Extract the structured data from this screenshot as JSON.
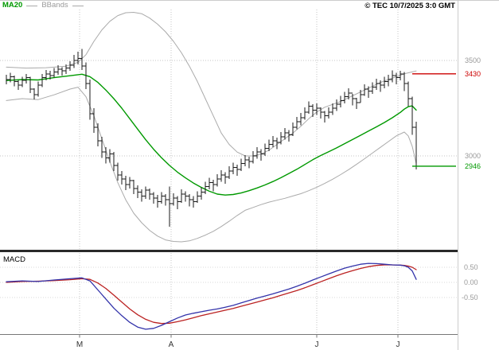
{
  "header": {
    "copyright": "© TEC 10/7/2025 3:0 GMT"
  },
  "legend": {
    "ma20": "MA20",
    "bbands": "BBands"
  },
  "macd_panel": {
    "title": "MACD"
  },
  "chart_data": {
    "type": "candlestick",
    "title": "Price chart with MA20 and Bollinger Bands, MACD sub-panel",
    "price_axis": {
      "tick_labels": [
        "3500",
        "3000"
      ],
      "gridlines": [
        3500,
        3000
      ],
      "range_visible": [
        2550,
        3780
      ]
    },
    "x_axis": {
      "month_labels": [
        "M",
        "A",
        "J",
        "J"
      ],
      "month_positions": [
        18.4,
        41.4,
        78,
        98.4
      ],
      "bar_count": 104
    },
    "markers": {
      "last_red": {
        "label": "3430",
        "value": 3430,
        "color": "#cc0000"
      },
      "last_green": {
        "label": "2946",
        "value": 2946,
        "color": "#009900"
      }
    },
    "colors": {
      "bars": "#1a1a1a",
      "ma20": "#009900",
      "bbands": "#aaaaaa",
      "macd_line": "#3333aa",
      "macd_signal": "#bb2222",
      "grid": "#c6c6c6"
    },
    "bars_format": [
      "high",
      "low",
      "close"
    ],
    "bars": [
      [
        3425,
        3375,
        3400
      ],
      [
        3435,
        3385,
        3415
      ],
      [
        3420,
        3365,
        3390
      ],
      [
        3395,
        3345,
        3370
      ],
      [
        3415,
        3360,
        3395
      ],
      [
        3430,
        3380,
        3410
      ],
      [
        3415,
        3330,
        3350
      ],
      [
        3355,
        3295,
        3320
      ],
      [
        3390,
        3310,
        3370
      ],
      [
        3430,
        3360,
        3410
      ],
      [
        3450,
        3395,
        3430
      ],
      [
        3445,
        3400,
        3420
      ],
      [
        3460,
        3410,
        3440
      ],
      [
        3475,
        3425,
        3455
      ],
      [
        3465,
        3420,
        3445
      ],
      [
        3480,
        3430,
        3460
      ],
      [
        3495,
        3445,
        3475
      ],
      [
        3530,
        3460,
        3500
      ],
      [
        3545,
        3480,
        3510
      ],
      [
        3560,
        3450,
        3470
      ],
      [
        3490,
        3350,
        3380
      ],
      [
        3400,
        3190,
        3220
      ],
      [
        3250,
        3120,
        3150
      ],
      [
        3170,
        3050,
        3080
      ],
      [
        3100,
        2990,
        3020
      ],
      [
        3045,
        2960,
        2990
      ],
      [
        3035,
        2965,
        3010
      ],
      [
        3020,
        2920,
        2950
      ],
      [
        2965,
        2870,
        2900
      ],
      [
        2920,
        2850,
        2880
      ],
      [
        2895,
        2820,
        2850
      ],
      [
        2890,
        2830,
        2870
      ],
      [
        2875,
        2800,
        2830
      ],
      [
        2845,
        2780,
        2810
      ],
      [
        2825,
        2760,
        2790
      ],
      [
        2840,
        2775,
        2820
      ],
      [
        2830,
        2770,
        2800
      ],
      [
        2810,
        2750,
        2780
      ],
      [
        2795,
        2730,
        2760
      ],
      [
        2810,
        2750,
        2790
      ],
      [
        2800,
        2740,
        2770
      ],
      [
        2840,
        2630,
        2750
      ],
      [
        2805,
        2740,
        2780
      ],
      [
        2790,
        2720,
        2760
      ],
      [
        2825,
        2755,
        2800
      ],
      [
        2815,
        2760,
        2790
      ],
      [
        2800,
        2735,
        2770
      ],
      [
        2790,
        2730,
        2760
      ],
      [
        2815,
        2755,
        2790
      ],
      [
        2835,
        2770,
        2810
      ],
      [
        2865,
        2800,
        2840
      ],
      [
        2885,
        2825,
        2860
      ],
      [
        2875,
        2815,
        2850
      ],
      [
        2905,
        2840,
        2880
      ],
      [
        2925,
        2865,
        2900
      ],
      [
        2915,
        2855,
        2890
      ],
      [
        2945,
        2880,
        2920
      ],
      [
        2965,
        2905,
        2940
      ],
      [
        2955,
        2895,
        2930
      ],
      [
        2985,
        2920,
        2960
      ],
      [
        3005,
        2945,
        2980
      ],
      [
        2995,
        2935,
        2970
      ],
      [
        3025,
        2960,
        3000
      ],
      [
        3045,
        2985,
        3020
      ],
      [
        3035,
        2975,
        3010
      ],
      [
        3065,
        3000,
        3040
      ],
      [
        3085,
        3025,
        3060
      ],
      [
        3105,
        3045,
        3080
      ],
      [
        3095,
        3035,
        3070
      ],
      [
        3125,
        3060,
        3100
      ],
      [
        3145,
        3085,
        3120
      ],
      [
        3135,
        3075,
        3110
      ],
      [
        3175,
        3105,
        3150
      ],
      [
        3205,
        3140,
        3180
      ],
      [
        3225,
        3160,
        3200
      ],
      [
        3255,
        3190,
        3230
      ],
      [
        3285,
        3220,
        3260
      ],
      [
        3270,
        3205,
        3240
      ],
      [
        3275,
        3215,
        3250
      ],
      [
        3255,
        3195,
        3230
      ],
      [
        3235,
        3175,
        3210
      ],
      [
        3255,
        3195,
        3230
      ],
      [
        3275,
        3215,
        3250
      ],
      [
        3295,
        3235,
        3270
      ],
      [
        3315,
        3255,
        3290
      ],
      [
        3335,
        3275,
        3310
      ],
      [
        3355,
        3295,
        3330
      ],
      [
        3325,
        3265,
        3300
      ],
      [
        3305,
        3245,
        3280
      ],
      [
        3345,
        3280,
        3320
      ],
      [
        3375,
        3315,
        3350
      ],
      [
        3365,
        3305,
        3340
      ],
      [
        3385,
        3325,
        3360
      ],
      [
        3405,
        3345,
        3380
      ],
      [
        3395,
        3335,
        3370
      ],
      [
        3415,
        3355,
        3390
      ],
      [
        3425,
        3365,
        3400
      ],
      [
        3448,
        3385,
        3420
      ],
      [
        3435,
        3375,
        3410
      ],
      [
        3445,
        3395,
        3430
      ],
      [
        3440,
        3340,
        3380
      ],
      [
        3390,
        3260,
        3300
      ],
      [
        3310,
        3110,
        3150
      ],
      [
        3180,
        2930,
        2946
      ]
    ],
    "ma20": [
      [
        0,
        3395
      ],
      [
        4,
        3400
      ],
      [
        8,
        3398
      ],
      [
        12,
        3410
      ],
      [
        16,
        3420
      ],
      [
        19,
        3428
      ],
      [
        21,
        3415
      ],
      [
        23,
        3385
      ],
      [
        25,
        3345
      ],
      [
        27,
        3300
      ],
      [
        29,
        3250
      ],
      [
        31,
        3195
      ],
      [
        33,
        3140
      ],
      [
        35,
        3085
      ],
      [
        37,
        3035
      ],
      [
        39,
        2990
      ],
      [
        41,
        2950
      ],
      [
        43,
        2915
      ],
      [
        45,
        2885
      ],
      [
        47,
        2858
      ],
      [
        49,
        2835
      ],
      [
        51,
        2815
      ],
      [
        53,
        2800
      ],
      [
        55,
        2795
      ],
      [
        57,
        2798
      ],
      [
        59,
        2806
      ],
      [
        61,
        2818
      ],
      [
        63,
        2832
      ],
      [
        65,
        2848
      ],
      [
        67,
        2866
      ],
      [
        69,
        2886
      ],
      [
        71,
        2908
      ],
      [
        73,
        2930
      ],
      [
        75,
        2955
      ],
      [
        77,
        2980
      ],
      [
        79,
        3002
      ],
      [
        81,
        3022
      ],
      [
        83,
        3042
      ],
      [
        85,
        3064
      ],
      [
        87,
        3086
      ],
      [
        89,
        3108
      ],
      [
        91,
        3130
      ],
      [
        93,
        3152
      ],
      [
        95,
        3175
      ],
      [
        97,
        3200
      ],
      [
        99,
        3228
      ],
      [
        100,
        3245
      ],
      [
        101,
        3258
      ],
      [
        102,
        3262
      ],
      [
        103,
        3240
      ]
    ],
    "bb_upper": [
      [
        0,
        3465
      ],
      [
        5,
        3460
      ],
      [
        10,
        3462
      ],
      [
        15,
        3470
      ],
      [
        18,
        3490
      ],
      [
        20,
        3530
      ],
      [
        22,
        3600
      ],
      [
        24,
        3660
      ],
      [
        26,
        3705
      ],
      [
        28,
        3735
      ],
      [
        30,
        3750
      ],
      [
        32,
        3752
      ],
      [
        34,
        3745
      ],
      [
        36,
        3722
      ],
      [
        38,
        3690
      ],
      [
        40,
        3650
      ],
      [
        42,
        3600
      ],
      [
        44,
        3540
      ],
      [
        46,
        3470
      ],
      [
        48,
        3390
      ],
      [
        50,
        3300
      ],
      [
        52,
        3210
      ],
      [
        54,
        3120
      ],
      [
        56,
        3060
      ],
      [
        58,
        3020
      ],
      [
        60,
        3000
      ],
      [
        62,
        3000
      ],
      [
        64,
        3010
      ],
      [
        66,
        3030
      ],
      [
        68,
        3060
      ],
      [
        70,
        3090
      ],
      [
        72,
        3120
      ],
      [
        74,
        3155
      ],
      [
        76,
        3195
      ],
      [
        78,
        3230
      ],
      [
        80,
        3255
      ],
      [
        82,
        3270
      ],
      [
        84,
        3285
      ],
      [
        86,
        3305
      ],
      [
        88,
        3325
      ],
      [
        90,
        3345
      ],
      [
        92,
        3365
      ],
      [
        94,
        3385
      ],
      [
        96,
        3400
      ],
      [
        98,
        3415
      ],
      [
        100,
        3430
      ],
      [
        102,
        3440
      ],
      [
        103,
        3445
      ]
    ],
    "bb_lower": [
      [
        0,
        3290
      ],
      [
        4,
        3300
      ],
      [
        8,
        3295
      ],
      [
        12,
        3320
      ],
      [
        16,
        3350
      ],
      [
        18,
        3360
      ],
      [
        20,
        3310
      ],
      [
        22,
        3210
      ],
      [
        24,
        3090
      ],
      [
        26,
        2970
      ],
      [
        28,
        2860
      ],
      [
        30,
        2770
      ],
      [
        32,
        2700
      ],
      [
        34,
        2650
      ],
      [
        36,
        2610
      ],
      [
        38,
        2580
      ],
      [
        40,
        2560
      ],
      [
        42,
        2552
      ],
      [
        44,
        2550
      ],
      [
        46,
        2555
      ],
      [
        48,
        2568
      ],
      [
        50,
        2585
      ],
      [
        52,
        2605
      ],
      [
        54,
        2630
      ],
      [
        56,
        2658
      ],
      [
        58,
        2688
      ],
      [
        60,
        2715
      ],
      [
        62,
        2730
      ],
      [
        64,
        2745
      ],
      [
        66,
        2758
      ],
      [
        68,
        2768
      ],
      [
        70,
        2778
      ],
      [
        72,
        2790
      ],
      [
        74,
        2802
      ],
      [
        76,
        2818
      ],
      [
        78,
        2836
      ],
      [
        80,
        2856
      ],
      [
        82,
        2878
      ],
      [
        84,
        2902
      ],
      [
        86,
        2928
      ],
      [
        88,
        2956
      ],
      [
        90,
        2985
      ],
      [
        92,
        3015
      ],
      [
        94,
        3045
      ],
      [
        96,
        3075
      ],
      [
        98,
        3105
      ],
      [
        100,
        3125
      ],
      [
        101,
        3105
      ],
      [
        102,
        3050
      ],
      [
        103,
        2960
      ]
    ],
    "macd": {
      "tick_labels": [
        "0.50",
        "0.00",
        "-0.50"
      ],
      "gridlines": [
        0.5,
        0.0,
        -0.5
      ],
      "macd_line": [
        [
          0,
          0.02
        ],
        [
          4,
          0.05
        ],
        [
          8,
          0.03
        ],
        [
          12,
          0.08
        ],
        [
          16,
          0.12
        ],
        [
          19,
          0.15
        ],
        [
          21,
          0.05
        ],
        [
          23,
          -0.25
        ],
        [
          25,
          -0.55
        ],
        [
          27,
          -0.85
        ],
        [
          29,
          -1.1
        ],
        [
          31,
          -1.32
        ],
        [
          33,
          -1.48
        ],
        [
          35,
          -1.55
        ],
        [
          37,
          -1.52
        ],
        [
          39,
          -1.42
        ],
        [
          41,
          -1.3
        ],
        [
          43,
          -1.18
        ],
        [
          45,
          -1.08
        ],
        [
          47,
          -1.02
        ],
        [
          49,
          -0.97
        ],
        [
          51,
          -0.92
        ],
        [
          53,
          -0.88
        ],
        [
          55,
          -0.82
        ],
        [
          57,
          -0.76
        ],
        [
          59,
          -0.68
        ],
        [
          61,
          -0.6
        ],
        [
          63,
          -0.52
        ],
        [
          65,
          -0.45
        ],
        [
          67,
          -0.38
        ],
        [
          69,
          -0.3
        ],
        [
          71,
          -0.22
        ],
        [
          73,
          -0.13
        ],
        [
          75,
          -0.03
        ],
        [
          77,
          0.08
        ],
        [
          79,
          0.18
        ],
        [
          81,
          0.28
        ],
        [
          83,
          0.38
        ],
        [
          85,
          0.47
        ],
        [
          87,
          0.54
        ],
        [
          89,
          0.6
        ],
        [
          91,
          0.63
        ],
        [
          93,
          0.62
        ],
        [
          95,
          0.6
        ],
        [
          97,
          0.58
        ],
        [
          99,
          0.57
        ],
        [
          100,
          0.55
        ],
        [
          101,
          0.5
        ],
        [
          102,
          0.38
        ],
        [
          103,
          0.1
        ]
      ],
      "signal_line": [
        [
          0,
          0.0
        ],
        [
          4,
          0.03
        ],
        [
          8,
          0.04
        ],
        [
          12,
          0.06
        ],
        [
          16,
          0.09
        ],
        [
          19,
          0.12
        ],
        [
          21,
          0.1
        ],
        [
          23,
          -0.02
        ],
        [
          25,
          -0.2
        ],
        [
          27,
          -0.42
        ],
        [
          29,
          -0.65
        ],
        [
          31,
          -0.88
        ],
        [
          33,
          -1.07
        ],
        [
          35,
          -1.22
        ],
        [
          37,
          -1.32
        ],
        [
          39,
          -1.36
        ],
        [
          41,
          -1.35
        ],
        [
          43,
          -1.3
        ],
        [
          45,
          -1.24
        ],
        [
          47,
          -1.17
        ],
        [
          49,
          -1.1
        ],
        [
          51,
          -1.04
        ],
        [
          53,
          -0.98
        ],
        [
          55,
          -0.92
        ],
        [
          57,
          -0.86
        ],
        [
          59,
          -0.79
        ],
        [
          61,
          -0.72
        ],
        [
          63,
          -0.65
        ],
        [
          65,
          -0.58
        ],
        [
          67,
          -0.51
        ],
        [
          69,
          -0.43
        ],
        [
          71,
          -0.35
        ],
        [
          73,
          -0.27
        ],
        [
          75,
          -0.18
        ],
        [
          77,
          -0.08
        ],
        [
          79,
          0.02
        ],
        [
          81,
          0.12
        ],
        [
          83,
          0.22
        ],
        [
          85,
          0.31
        ],
        [
          87,
          0.39
        ],
        [
          89,
          0.46
        ],
        [
          91,
          0.52
        ],
        [
          93,
          0.56
        ],
        [
          95,
          0.58
        ],
        [
          97,
          0.58
        ],
        [
          99,
          0.57
        ],
        [
          100,
          0.56
        ],
        [
          101,
          0.54
        ],
        [
          102,
          0.5
        ],
        [
          103,
          0.42
        ]
      ]
    }
  }
}
